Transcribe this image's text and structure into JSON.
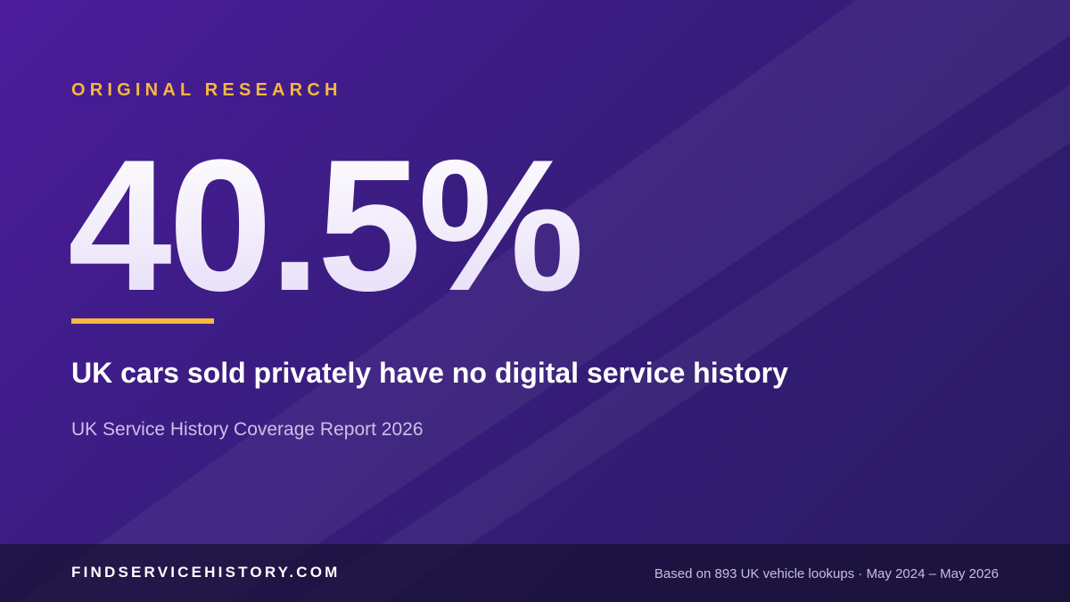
{
  "card": {
    "eyebrow": "ORIGINAL RESEARCH",
    "stat": "40.5%",
    "headline": "UK cars sold privately have no digital service history",
    "report": "UK Service History Coverage Report 2026",
    "footer": {
      "brand": "FINDSERVICEHISTORY.COM",
      "note": "Based on 893 UK vehicle lookups · May 2024 – May 2026"
    }
  }
}
